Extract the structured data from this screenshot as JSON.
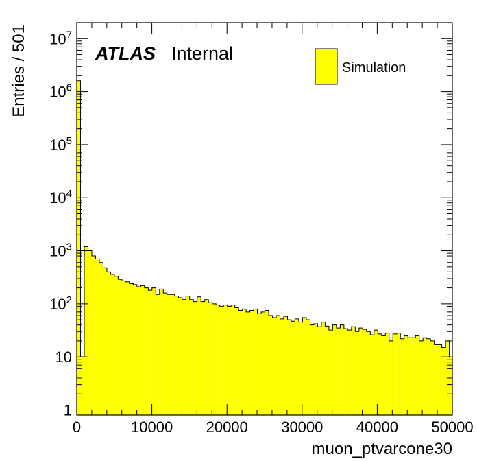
{
  "experiment_label": "ATLAS",
  "status_label": "Internal",
  "chart_data": {
    "type": "bar",
    "xlabel": "muon_ptvarcone30",
    "ylabel": "Entries / 501",
    "xlim": [
      0,
      50000
    ],
    "ylim": [
      0.8,
      20000000
    ],
    "log_y": true,
    "grid": false,
    "legend_position": "top-right",
    "bin_width": 501,
    "x_ticks": [
      {
        "value": 0,
        "label": "0"
      },
      {
        "value": 10000,
        "label": "10000"
      },
      {
        "value": 20000,
        "label": "20000"
      },
      {
        "value": 30000,
        "label": "30000"
      },
      {
        "value": 40000,
        "label": "40000"
      },
      {
        "value": 50000,
        "label": "50000"
      }
    ],
    "y_ticks": [
      {
        "value": 1,
        "base": "1",
        "exp": ""
      },
      {
        "value": 10,
        "base": "10",
        "exp": ""
      },
      {
        "value": 100,
        "base": "10",
        "exp": "2"
      },
      {
        "value": 1000,
        "base": "10",
        "exp": "3"
      },
      {
        "value": 10000,
        "base": "10",
        "exp": "4"
      },
      {
        "value": 100000,
        "base": "10",
        "exp": "5"
      },
      {
        "value": 1000000,
        "base": "10",
        "exp": "6"
      },
      {
        "value": 10000000,
        "base": "10",
        "exp": "7"
      }
    ],
    "series": [
      {
        "name": "Simulation",
        "color": "#ffff00",
        "edge_color": "#000000",
        "x": [
          0,
          501,
          1002,
          1503,
          2004,
          2505,
          3006,
          3507,
          4008,
          4509,
          5010,
          5511,
          6012,
          6513,
          7014,
          7515,
          8016,
          8517,
          9018,
          9519,
          10020,
          10521,
          11022,
          11523,
          12024,
          12525,
          13026,
          13527,
          14028,
          14529,
          15030,
          15531,
          16032,
          16533,
          17034,
          17535,
          18036,
          18537,
          19038,
          19539,
          20040,
          20541,
          21042,
          21543,
          22044,
          22545,
          23046,
          23547,
          24048,
          24549,
          25050,
          25551,
          26052,
          26553,
          27054,
          27555,
          28056,
          28557,
          29058,
          29559,
          30060,
          30561,
          31062,
          31563,
          32064,
          32565,
          33066,
          33567,
          34068,
          34569,
          35070,
          35571,
          36072,
          36573,
          37074,
          37575,
          38076,
          38577,
          39078,
          39579,
          40080,
          40581,
          41082,
          41583,
          42084,
          42585,
          43086,
          43587,
          44088,
          44589,
          45090,
          45591,
          46092,
          46593,
          47094,
          47595,
          48096,
          48597,
          49098,
          49599
        ],
        "values": [
          1600000,
          10,
          1200,
          1000,
          800,
          700,
          600,
          480,
          400,
          360,
          330,
          290,
          270,
          260,
          240,
          230,
          210,
          220,
          200,
          180,
          200,
          150,
          190,
          160,
          150,
          150,
          140,
          130,
          120,
          140,
          120,
          110,
          135,
          110,
          120,
          105,
          100,
          95,
          90,
          95,
          90,
          95,
          85,
          75,
          80,
          70,
          75,
          80,
          65,
          70,
          75,
          60,
          55,
          60,
          52,
          58,
          50,
          47,
          52,
          45,
          55,
          50,
          40,
          42,
          37,
          45,
          38,
          32,
          40,
          35,
          40,
          34,
          32,
          37,
          30,
          35,
          33,
          30,
          26,
          32,
          27,
          25,
          28,
          20,
          27,
          28,
          22,
          25,
          23,
          23,
          25,
          20,
          23,
          22,
          20,
          17,
          17,
          15,
          20,
          10
        ]
      }
    ]
  }
}
